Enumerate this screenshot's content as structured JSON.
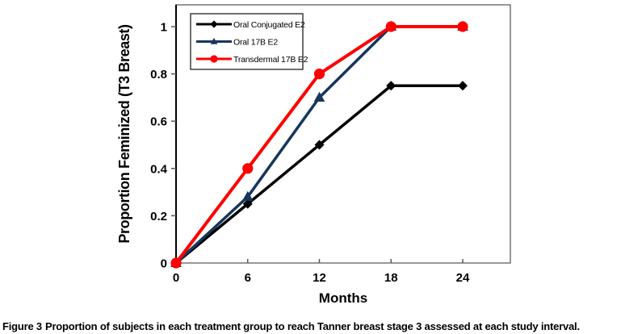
{
  "figure": {
    "caption_label": "Figure 3",
    "caption_text": "Proportion of subjects in each treatment group to reach Tanner breast stage 3 assessed at each study interval."
  },
  "chart_data": {
    "type": "line",
    "title": "",
    "xlabel": "Months",
    "ylabel": "Proportion Feminized (T3 Breast)",
    "x": [
      0,
      6,
      12,
      18,
      24
    ],
    "xtick_labels": [
      "0",
      "6",
      "12",
      "18",
      "24"
    ],
    "yticks": [
      0,
      0.2,
      0.4,
      0.6,
      0.8,
      1
    ],
    "ytick_labels": [
      "0",
      "0.2",
      "0.4",
      "0.6",
      "0.8",
      "1"
    ],
    "xlim": [
      0,
      28
    ],
    "ylim": [
      0,
      1.09
    ],
    "grid": false,
    "legend_position": "top-left",
    "series": [
      {
        "name": "Oral Conjugated E2",
        "color": "#000000",
        "marker": "diamond",
        "line_width": 3.5,
        "values": [
          0,
          0.25,
          0.5,
          0.75,
          0.75
        ]
      },
      {
        "name": "Oral 17B E2",
        "color": "#17365D",
        "marker": "triangle",
        "line_width": 3.5,
        "values": [
          0,
          0.28,
          0.7,
          1,
          1
        ]
      },
      {
        "name": "Transdermal 17B E2",
        "color": "#FE0000",
        "marker": "circle",
        "line_width": 4,
        "values": [
          0,
          0.4,
          0.8,
          1,
          1
        ]
      }
    ],
    "colors": {
      "plot_border": "#7f7f7f",
      "axis_line": "#000000",
      "tick": "#595959",
      "legend_border": "#3f3f3f",
      "background": "#ffffff"
    }
  }
}
